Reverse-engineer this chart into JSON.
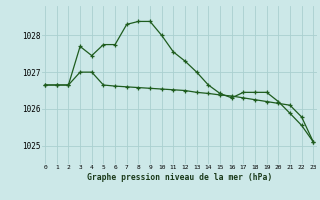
{
  "title": "Graphe pression niveau de la mer (hPa)",
  "background_color": "#cce8e8",
  "grid_color": "#aad0d0",
  "line_color": "#1e5c1e",
  "x_labels": [
    "0",
    "1",
    "2",
    "3",
    "4",
    "5",
    "6",
    "7",
    "8",
    "9",
    "10",
    "11",
    "12",
    "13",
    "14",
    "15",
    "16",
    "17",
    "18",
    "19",
    "20",
    "21",
    "22",
    "23"
  ],
  "yticks": [
    1025,
    1026,
    1027,
    1028
  ],
  "ylim": [
    1024.5,
    1028.8
  ],
  "xlim": [
    -0.3,
    23.3
  ],
  "series1": [
    1026.65,
    1026.65,
    1026.65,
    1027.0,
    1027.0,
    1026.65,
    1026.62,
    1026.6,
    1026.58,
    1026.56,
    1026.54,
    1026.52,
    1026.5,
    1026.45,
    1026.42,
    1026.38,
    1026.35,
    1026.3,
    1026.25,
    1026.2,
    1026.15,
    1026.1,
    1025.78,
    1025.1
  ],
  "series2": [
    1026.65,
    1026.65,
    1026.65,
    1027.7,
    1027.45,
    1027.75,
    1027.75,
    1028.3,
    1028.38,
    1028.38,
    1028.0,
    1027.55,
    1027.3,
    1027.0,
    1026.65,
    1026.42,
    1026.3,
    1026.45,
    1026.45,
    1026.45,
    1026.2,
    1025.88,
    1025.55,
    1025.1
  ]
}
